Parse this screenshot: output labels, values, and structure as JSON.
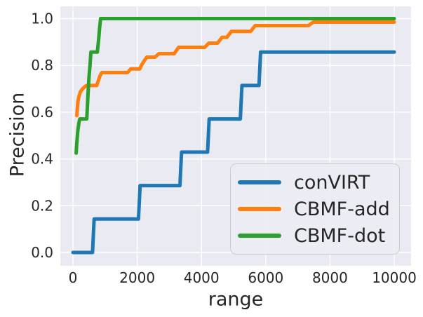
{
  "chart_data": {
    "type": "line",
    "title": "",
    "xlabel": "range",
    "ylabel": "Precision",
    "xlim": [
      -400,
      10500
    ],
    "ylim": [
      -0.05,
      1.05
    ],
    "grid": true,
    "legend_position": "lower right",
    "xticks": [
      0,
      2000,
      4000,
      6000,
      8000,
      10000
    ],
    "xtick_labels": [
      "0",
      "2000",
      "4000",
      "6000",
      "8000",
      "10000"
    ],
    "yticks": [
      0.0,
      0.2,
      0.4,
      0.6,
      0.8,
      1.0
    ],
    "ytick_labels": [
      "0.0",
      "0.2",
      "0.4",
      "0.6",
      "0.8",
      "1.0"
    ],
    "colors": {
      "plot_background": "#eaeaf2",
      "gridline": "#ffffff",
      "text": "#262626",
      "legend_border": "#cccccc"
    },
    "series": [
      {
        "name": "conVIRT",
        "color": "#1f77b4",
        "points": [
          [
            0,
            0.0
          ],
          [
            610,
            0.0
          ],
          [
            660,
            0.143
          ],
          [
            2040,
            0.143
          ],
          [
            2090,
            0.286
          ],
          [
            3330,
            0.286
          ],
          [
            3380,
            0.429
          ],
          [
            4190,
            0.429
          ],
          [
            4240,
            0.571
          ],
          [
            5210,
            0.571
          ],
          [
            5260,
            0.714
          ],
          [
            5790,
            0.714
          ],
          [
            5840,
            0.857
          ],
          [
            10000,
            0.857
          ]
        ]
      },
      {
        "name": "CBMF-add",
        "color": "#ff7f0e",
        "points": [
          [
            120,
            0.585
          ],
          [
            135,
            0.615
          ],
          [
            155,
            0.645
          ],
          [
            185,
            0.667
          ],
          [
            230,
            0.686
          ],
          [
            300,
            0.7
          ],
          [
            380,
            0.71
          ],
          [
            430,
            0.714
          ],
          [
            740,
            0.714
          ],
          [
            780,
            0.73
          ],
          [
            840,
            0.755
          ],
          [
            900,
            0.769
          ],
          [
            1700,
            0.769
          ],
          [
            1800,
            0.785
          ],
          [
            2080,
            0.785
          ],
          [
            2130,
            0.8
          ],
          [
            2220,
            0.82
          ],
          [
            2300,
            0.835
          ],
          [
            2550,
            0.835
          ],
          [
            2680,
            0.85
          ],
          [
            3150,
            0.85
          ],
          [
            3290,
            0.877
          ],
          [
            4100,
            0.877
          ],
          [
            4230,
            0.895
          ],
          [
            4500,
            0.895
          ],
          [
            4640,
            0.92
          ],
          [
            4790,
            0.92
          ],
          [
            4930,
            0.945
          ],
          [
            5530,
            0.945
          ],
          [
            5670,
            0.97
          ],
          [
            7330,
            0.97
          ],
          [
            7480,
            0.985
          ],
          [
            10000,
            0.985
          ]
        ]
      },
      {
        "name": "CBMF-dot",
        "color": "#2ca02c",
        "points": [
          [
            100,
            0.425
          ],
          [
            115,
            0.46
          ],
          [
            150,
            0.52
          ],
          [
            185,
            0.555
          ],
          [
            215,
            0.571
          ],
          [
            430,
            0.571
          ],
          [
            470,
            0.68
          ],
          [
            500,
            0.75
          ],
          [
            530,
            0.8
          ],
          [
            560,
            0.857
          ],
          [
            760,
            0.857
          ],
          [
            800,
            0.91
          ],
          [
            830,
            0.96
          ],
          [
            860,
            1.0
          ],
          [
            10000,
            1.0
          ]
        ]
      }
    ]
  }
}
